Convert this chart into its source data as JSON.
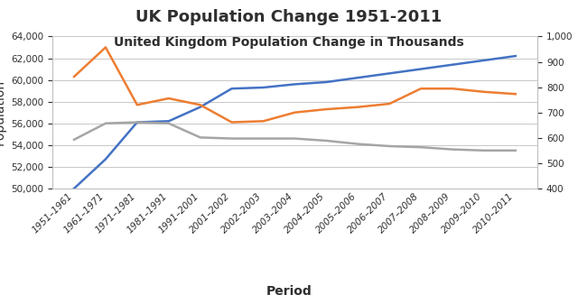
{
  "title": "UK Population Change 1951-2011",
  "subtitle": "United Kingdom Population Change in Thousands",
  "xlabel": "Period",
  "ylabel": "Population",
  "categories": [
    "1951–1961",
    "1961–1971",
    "1971–1981",
    "1981–1991",
    "1991–2001",
    "2001–2002",
    "2002–2003",
    "2003–2004",
    "2004–2005",
    "2005–2006",
    "2006–2007",
    "2007–2008",
    "2008–2009",
    "2009–2010",
    "2010–2011"
  ],
  "blue_line": [
    50000,
    52700,
    56100,
    56200,
    57500,
    59200,
    59300,
    59600,
    59800,
    60200,
    60600,
    61000,
    61400,
    61800,
    62200
  ],
  "orange_line": [
    60300,
    63000,
    57700,
    58300,
    57700,
    56100,
    56200,
    57000,
    57300,
    57500,
    57800,
    59200,
    59200,
    58900,
    58700
  ],
  "gray_line": [
    54500,
    56000,
    56100,
    56000,
    54700,
    54600,
    54600,
    54600,
    54400,
    54100,
    53900,
    53800,
    53600,
    53500,
    53500
  ],
  "blue_color": "#4472C4",
  "orange_color": "#ED7D31",
  "gray_color": "#A5A5A5",
  "ylim_left": [
    50000,
    64000
  ],
  "ylim_right": [
    400,
    1000
  ],
  "yticks_left": [
    50000,
    52000,
    54000,
    56000,
    58000,
    60000,
    62000,
    64000
  ],
  "yticks_right": [
    400,
    500,
    600,
    700,
    800,
    900,
    1000
  ],
  "bg_color": "#FFFFFF",
  "grid_color": "#BFBFBF",
  "title_fontsize": 13,
  "subtitle_fontsize": 10,
  "label_fontsize": 10,
  "tick_fontsize": 7.5
}
